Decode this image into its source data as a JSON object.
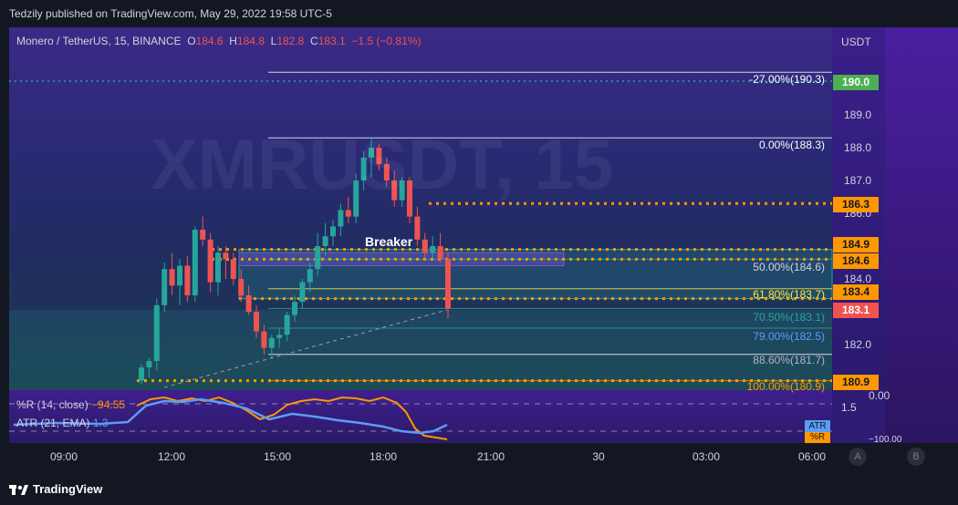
{
  "header": {
    "published": "Tedzily published on TradingView.com, May 29, 2022 19:58 UTC-5"
  },
  "legend": {
    "symbol": "Monero / TetherUS, 15, BINANCE",
    "open_label": "O",
    "open": "184.6",
    "high_label": "H",
    "high": "184.8",
    "low_label": "L",
    "low": "182.8",
    "close_label": "C",
    "close": "183.1",
    "change": "−1.5 (−0.81%)"
  },
  "watermark": "XMRUSDT, 15",
  "annotation": "Breaker",
  "price_scale": {
    "currency": "USDT",
    "ticks": [
      "189.0",
      "188.0",
      "187.0",
      "186.0",
      "184.0",
      "182.0"
    ],
    "badges": [
      {
        "text": "190.0",
        "color": "#4caf50"
      },
      {
        "text": "186.3",
        "color": "#ff9800"
      },
      {
        "text": "184.9",
        "color": "#ff9800"
      },
      {
        "text": "184.6",
        "color": "#ff9800"
      },
      {
        "text": "183.4",
        "color": "#ff9800"
      },
      {
        "text": "183.1",
        "color": "#ef5350"
      },
      {
        "text": "180.9",
        "color": "#ff9800"
      }
    ]
  },
  "fib_levels": [
    {
      "label": "-27.00%(190.3)"
    },
    {
      "label": "0.00%(188.3)"
    },
    {
      "label": "50.00%(184.6)"
    },
    {
      "label": "61.80%(183.7)"
    },
    {
      "label": "70.50%(183.1)"
    },
    {
      "label": "79.00%(182.5)"
    },
    {
      "label": "88.60%(181.7)"
    },
    {
      "label": "100.00%(180.9)"
    }
  ],
  "indicators": {
    "wr_label": "%R (14, close)",
    "wr_value": "−94.55",
    "atr_label": "ATR (21, EMA)",
    "atr_value": "1.3",
    "scale_top": "0.00",
    "scale_mid": "1.5",
    "scale_bottom": "−100.00",
    "atr_tag": "ATR",
    "wr_tag": "%R"
  },
  "time_axis": {
    "ticks": [
      "09:00",
      "12:00",
      "15:00",
      "18:00",
      "21:00",
      "30",
      "03:00",
      "06:00"
    ]
  },
  "buttons": {
    "a": "A",
    "b": "B"
  },
  "footer": {
    "brand": "TradingView"
  },
  "colors": {
    "up": "#26a69a",
    "down": "#ef5350",
    "fib": "#ff9800",
    "badge_text": "#131722"
  },
  "chart_data": {
    "type": "candlestick",
    "symbol": "XMRUSDT",
    "interval": "15",
    "ylim": [
      180.9,
      190.3
    ],
    "candles": [
      {
        "o": 180.9,
        "h": 181.4,
        "l": 180.8,
        "c": 181.3
      },
      {
        "o": 181.3,
        "h": 181.6,
        "l": 181.0,
        "c": 181.5
      },
      {
        "o": 181.5,
        "h": 183.4,
        "l": 181.2,
        "c": 183.2
      },
      {
        "o": 183.2,
        "h": 184.5,
        "l": 183.0,
        "c": 184.3
      },
      {
        "o": 184.3,
        "h": 184.8,
        "l": 183.5,
        "c": 183.8
      },
      {
        "o": 183.8,
        "h": 184.6,
        "l": 183.2,
        "c": 184.4
      },
      {
        "o": 184.4,
        "h": 184.7,
        "l": 183.3,
        "c": 183.5
      },
      {
        "o": 183.5,
        "h": 185.6,
        "l": 183.3,
        "c": 185.5
      },
      {
        "o": 185.5,
        "h": 185.9,
        "l": 185.0,
        "c": 185.2
      },
      {
        "o": 185.2,
        "h": 185.4,
        "l": 183.6,
        "c": 183.9
      },
      {
        "o": 183.9,
        "h": 185.0,
        "l": 183.5,
        "c": 184.8
      },
      {
        "o": 184.8,
        "h": 185.0,
        "l": 184.0,
        "c": 184.6
      },
      {
        "o": 184.6,
        "h": 184.8,
        "l": 183.8,
        "c": 184.0
      },
      {
        "o": 184.0,
        "h": 184.3,
        "l": 183.3,
        "c": 183.5
      },
      {
        "o": 183.5,
        "h": 183.8,
        "l": 182.9,
        "c": 183.0
      },
      {
        "o": 183.0,
        "h": 183.2,
        "l": 182.2,
        "c": 182.4
      },
      {
        "o": 182.4,
        "h": 182.6,
        "l": 181.7,
        "c": 181.9
      },
      {
        "o": 181.9,
        "h": 182.3,
        "l": 181.6,
        "c": 182.2
      },
      {
        "o": 182.2,
        "h": 182.5,
        "l": 181.9,
        "c": 182.3
      },
      {
        "o": 182.3,
        "h": 183.0,
        "l": 182.1,
        "c": 182.9
      },
      {
        "o": 182.9,
        "h": 183.5,
        "l": 182.7,
        "c": 183.3
      },
      {
        "o": 183.3,
        "h": 184.0,
        "l": 183.1,
        "c": 183.9
      },
      {
        "o": 183.9,
        "h": 184.5,
        "l": 183.6,
        "c": 184.3
      },
      {
        "o": 184.3,
        "h": 185.4,
        "l": 184.1,
        "c": 185.0
      },
      {
        "o": 185.0,
        "h": 185.7,
        "l": 184.7,
        "c": 185.3
      },
      {
        "o": 185.3,
        "h": 185.8,
        "l": 185.0,
        "c": 185.6
      },
      {
        "o": 185.6,
        "h": 186.3,
        "l": 185.3,
        "c": 186.1
      },
      {
        "o": 186.1,
        "h": 186.5,
        "l": 185.7,
        "c": 185.9
      },
      {
        "o": 185.9,
        "h": 187.2,
        "l": 185.7,
        "c": 187.0
      },
      {
        "o": 187.0,
        "h": 187.9,
        "l": 186.7,
        "c": 187.7
      },
      {
        "o": 187.7,
        "h": 188.3,
        "l": 187.1,
        "c": 188.0
      },
      {
        "o": 188.0,
        "h": 188.1,
        "l": 187.3,
        "c": 187.5
      },
      {
        "o": 187.5,
        "h": 187.7,
        "l": 186.8,
        "c": 187.0
      },
      {
        "o": 187.0,
        "h": 187.3,
        "l": 186.2,
        "c": 186.4
      },
      {
        "o": 186.4,
        "h": 187.1,
        "l": 186.2,
        "c": 187.0
      },
      {
        "o": 187.0,
        "h": 187.1,
        "l": 185.7,
        "c": 185.9
      },
      {
        "o": 185.9,
        "h": 186.2,
        "l": 185.0,
        "c": 185.2
      },
      {
        "o": 185.2,
        "h": 185.4,
        "l": 184.6,
        "c": 184.8
      },
      {
        "o": 184.8,
        "h": 185.3,
        "l": 184.6,
        "c": 185.0
      },
      {
        "o": 185.0,
        "h": 185.4,
        "l": 184.5,
        "c": 184.6
      },
      {
        "o": 184.6,
        "h": 184.8,
        "l": 182.8,
        "c": 183.1
      }
    ],
    "levels": [
      190.3,
      188.3,
      186.3,
      184.9,
      184.6,
      183.7,
      183.4,
      183.1,
      182.5,
      181.7,
      180.9
    ]
  }
}
